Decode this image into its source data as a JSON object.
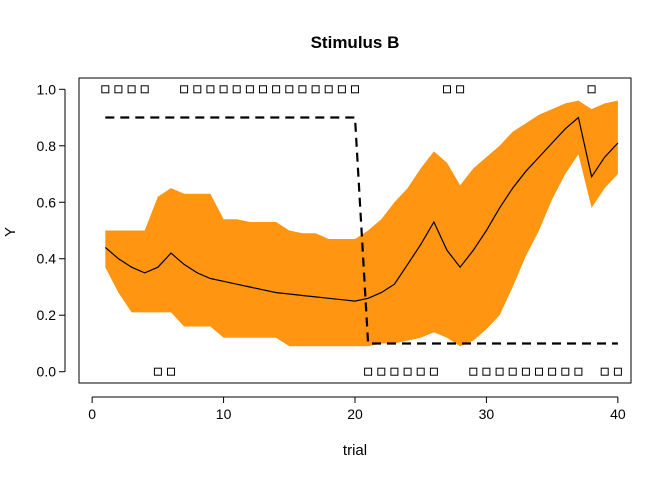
{
  "chart_data": {
    "type": "line",
    "title": "Stimulus B",
    "xlabel": "trial",
    "ylabel": "Y",
    "xlim": [
      -1,
      41
    ],
    "ylim": [
      -0.04,
      1.04
    ],
    "x_ticks": [
      0,
      10,
      20,
      30,
      40
    ],
    "y_ticks": [
      0.0,
      0.2,
      0.4,
      0.6,
      0.8,
      1.0
    ],
    "x_tick_labels": [
      "0",
      "10",
      "20",
      "30",
      "40"
    ],
    "y_tick_labels": [
      "0.0",
      "0.2",
      "0.4",
      "0.6",
      "0.8",
      "1.0"
    ],
    "grid": false,
    "legend": "none",
    "colors": {
      "band": "#FF9510",
      "line": "#000000",
      "axis": "#000000"
    },
    "series": [
      {
        "kind": "band",
        "x": [
          1,
          2,
          3,
          4,
          5,
          6,
          7,
          8,
          9,
          10,
          11,
          12,
          13,
          14,
          15,
          16,
          17,
          18,
          19,
          20,
          21,
          22,
          23,
          24,
          25,
          26,
          27,
          28,
          29,
          30,
          31,
          32,
          33,
          34,
          35,
          36,
          37,
          38,
          39,
          40
        ],
        "upper": [
          0.5,
          0.5,
          0.5,
          0.5,
          0.62,
          0.65,
          0.63,
          0.63,
          0.63,
          0.54,
          0.54,
          0.53,
          0.53,
          0.53,
          0.5,
          0.49,
          0.49,
          0.47,
          0.47,
          0.47,
          0.5,
          0.54,
          0.6,
          0.65,
          0.72,
          0.78,
          0.74,
          0.66,
          0.72,
          0.76,
          0.8,
          0.85,
          0.88,
          0.91,
          0.93,
          0.95,
          0.96,
          0.93,
          0.95,
          0.96
        ],
        "lower": [
          0.37,
          0.28,
          0.21,
          0.21,
          0.21,
          0.21,
          0.16,
          0.16,
          0.16,
          0.12,
          0.12,
          0.12,
          0.12,
          0.12,
          0.09,
          0.09,
          0.09,
          0.09,
          0.09,
          0.09,
          0.09,
          0.1,
          0.1,
          0.11,
          0.12,
          0.14,
          0.12,
          0.09,
          0.11,
          0.15,
          0.2,
          0.3,
          0.41,
          0.5,
          0.61,
          0.7,
          0.77,
          0.58,
          0.65,
          0.7
        ]
      },
      {
        "kind": "line",
        "style": "solid",
        "x": [
          1,
          2,
          3,
          4,
          5,
          6,
          7,
          8,
          9,
          10,
          11,
          12,
          13,
          14,
          15,
          16,
          17,
          18,
          19,
          20,
          21,
          22,
          23,
          24,
          25,
          26,
          27,
          28,
          29,
          30,
          31,
          32,
          33,
          34,
          35,
          36,
          37,
          38,
          39,
          40
        ],
        "y": [
          0.44,
          0.4,
          0.37,
          0.35,
          0.37,
          0.42,
          0.38,
          0.35,
          0.33,
          0.32,
          0.31,
          0.3,
          0.29,
          0.28,
          0.275,
          0.27,
          0.265,
          0.26,
          0.255,
          0.25,
          0.26,
          0.28,
          0.31,
          0.38,
          0.45,
          0.53,
          0.43,
          0.37,
          0.43,
          0.5,
          0.58,
          0.65,
          0.71,
          0.76,
          0.81,
          0.86,
          0.9,
          0.69,
          0.76,
          0.81
        ]
      },
      {
        "kind": "line",
        "style": "dashed",
        "x": [
          1,
          20,
          21,
          40
        ],
        "y": [
          0.9,
          0.9,
          0.1,
          0.1
        ]
      }
    ],
    "markers": {
      "shape": "open-square",
      "top": {
        "y": 1.0,
        "x": [
          1,
          2,
          3,
          4,
          7,
          8,
          9,
          10,
          11,
          12,
          13,
          14,
          15,
          16,
          17,
          18,
          19,
          20,
          27,
          28,
          38
        ]
      },
      "bottom": {
        "y": 0.0,
        "x": [
          5,
          6,
          21,
          22,
          23,
          24,
          25,
          26,
          29,
          30,
          31,
          32,
          33,
          34,
          35,
          36,
          37,
          39,
          40
        ]
      }
    }
  }
}
